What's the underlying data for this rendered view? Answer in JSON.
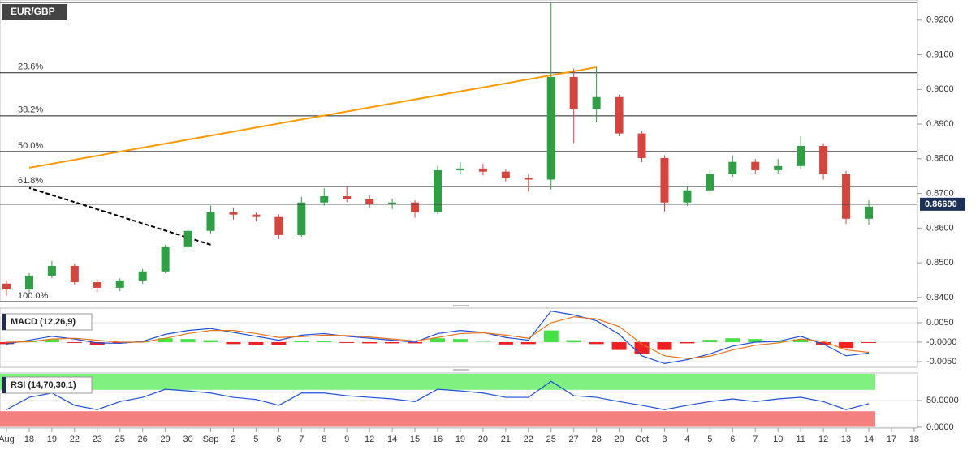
{
  "chart_data": [
    {
      "type": "candlestick",
      "title": "EUR/GBP",
      "categories": [
        "Aug",
        "18",
        "19",
        "22",
        "23",
        "25",
        "26",
        "29",
        "30",
        "Sep",
        "2",
        "5",
        "6",
        "7",
        "8",
        "9",
        "12",
        "14",
        "15",
        "16",
        "19",
        "20",
        "21",
        "22",
        "25",
        "27",
        "28",
        "29",
        "Oct",
        "3",
        "4",
        "5",
        "6",
        "7",
        "10",
        "11",
        "12",
        "13",
        "14",
        "17",
        "18"
      ],
      "open": [
        0.844,
        0.8423,
        0.8463,
        0.8491,
        0.8444,
        0.8428,
        0.8449,
        0.8475,
        0.8545,
        0.8592,
        0.8646,
        0.8639,
        0.8632,
        0.858,
        0.8674,
        0.8692,
        0.8685,
        0.867,
        0.8674,
        0.8646,
        0.8767,
        0.8772,
        0.8763,
        0.8744,
        0.874,
        0.9036,
        0.8943,
        0.8978,
        0.8873,
        0.8802,
        0.8674,
        0.8709,
        0.8756,
        0.8791,
        0.8767,
        0.8779,
        0.8837,
        0.8756,
        0.8627,
        null,
        null
      ],
      "high": [
        0.8448,
        0.847,
        0.8505,
        0.8498,
        0.8452,
        0.8455,
        0.8482,
        0.8552,
        0.86,
        0.8665,
        0.866,
        0.8645,
        0.864,
        0.869,
        0.8715,
        0.872,
        0.8695,
        0.8685,
        0.868,
        0.878,
        0.879,
        0.8785,
        0.877,
        0.8755,
        0.9252,
        0.906,
        0.9064,
        0.8985,
        0.888,
        0.881,
        0.872,
        0.877,
        0.881,
        0.88,
        0.88,
        0.8865,
        0.8845,
        0.8765,
        0.868,
        null,
        null
      ],
      "low": [
        0.8405,
        0.8415,
        0.8455,
        0.8438,
        0.8415,
        0.8418,
        0.844,
        0.847,
        0.8538,
        0.8585,
        0.8625,
        0.862,
        0.8568,
        0.8575,
        0.8665,
        0.8675,
        0.8658,
        0.8655,
        0.863,
        0.864,
        0.8755,
        0.8752,
        0.8735,
        0.8705,
        0.8712,
        0.8845,
        0.8905,
        0.8865,
        0.879,
        0.8648,
        0.8665,
        0.87,
        0.8748,
        0.8755,
        0.8755,
        0.877,
        0.874,
        0.8612,
        0.861,
        null,
        null
      ],
      "close": [
        0.8423,
        0.8463,
        0.8491,
        0.8444,
        0.8428,
        0.8449,
        0.8475,
        0.8545,
        0.8592,
        0.8646,
        0.8639,
        0.8632,
        0.858,
        0.8674,
        0.8692,
        0.8685,
        0.867,
        0.8674,
        0.8646,
        0.8767,
        0.8772,
        0.8763,
        0.8744,
        0.874,
        0.9036,
        0.8943,
        0.8978,
        0.8873,
        0.8802,
        0.8674,
        0.8709,
        0.8756,
        0.8791,
        0.8767,
        0.8779,
        0.8837,
        0.8756,
        0.8627,
        0.8662,
        null,
        null
      ],
      "up_color": "#2f9e44",
      "down_color": "#d6453d",
      "ylim": [
        0.8388,
        0.9258
      ],
      "yticks": [
        {
          "value": 0.92,
          "label": "0.9200"
        },
        {
          "value": 0.91,
          "label": "0.9100"
        },
        {
          "value": 0.9,
          "label": "0.9000"
        },
        {
          "value": 0.89,
          "label": "0.8900"
        },
        {
          "value": 0.88,
          "label": "0.8800"
        },
        {
          "value": 0.87,
          "label": "0.8700"
        },
        {
          "value": 0.86,
          "label": "0.8600"
        },
        {
          "value": 0.85,
          "label": "0.8500"
        },
        {
          "value": 0.84,
          "label": "0.8400"
        }
      ],
      "levels": [
        {
          "value": 0.9251
        },
        {
          "value": 0.9048,
          "label": "23.6%"
        },
        {
          "value": 0.8924,
          "label": "38.2%"
        },
        {
          "value": 0.8821,
          "label": "50.0%"
        },
        {
          "value": 0.872,
          "label": "61.8%"
        },
        {
          "value": 0.8388,
          "label": "100.0%"
        }
      ],
      "last_price": {
        "value": 0.8669,
        "label": "0.86690"
      },
      "trendlines": [
        {
          "color": "#ff9900",
          "dashed": false,
          "x": [
            "28",
            "18"
          ],
          "y": [
            0.9064,
            0.8774
          ]
        },
        {
          "color": "#000000",
          "dashed": true,
          "x": [
            "Sep",
            "18"
          ],
          "y": [
            0.8552,
            0.8716
          ]
        }
      ]
    },
    {
      "type": "macd",
      "title": "MACD (12,26,9)",
      "ylim": [
        -0.00646,
        0.00875
      ],
      "yticks": [
        {
          "value": 0.005,
          "label": "0.0050"
        },
        {
          "value": 0,
          "label": "-0.0000"
        },
        {
          "value": -0.005,
          "label": "-0.0050"
        }
      ],
      "series": [
        {
          "color": "#1f4fd6",
          "values": [
            -0.0005,
            0.0005,
            0.0015,
            0.0008,
            -0.0002,
            -0.0003,
            0.0002,
            0.002,
            0.003,
            0.0035,
            0.0025,
            0.0015,
            0.0005,
            0.0018,
            0.0022,
            0.0015,
            0.001,
            0.0005,
            0.0,
            0.0022,
            0.003,
            0.0025,
            0.0012,
            0.0005,
            0.008,
            0.007,
            0.0055,
            0.002,
            -0.0035,
            -0.0055,
            -0.0045,
            -0.003,
            -0.001,
            0.0,
            0.0002,
            0.0015,
            -0.0005,
            -0.0035,
            -0.0028,
            null,
            null
          ]
        },
        {
          "color": "#e8731a",
          "values": [
            0.0,
            0.0001,
            0.0008,
            0.001,
            0.0005,
            0.0,
            0.0,
            0.001,
            0.0022,
            0.003,
            0.003,
            0.0022,
            0.0012,
            0.0014,
            0.0018,
            0.0017,
            0.0013,
            0.0008,
            0.0003,
            0.0012,
            0.0022,
            0.0024,
            0.0018,
            0.001,
            0.005,
            0.0065,
            0.006,
            0.004,
            -0.0005,
            -0.0035,
            -0.0042,
            -0.0036,
            -0.002,
            -0.0008,
            -0.0002,
            0.0008,
            0.0002,
            -0.002,
            -0.0026,
            null,
            null
          ]
        }
      ],
      "histogram": [
        -0.0005,
        0.0004,
        0.0007,
        -0.0002,
        -0.0007,
        -0.0003,
        0.0002,
        0.001,
        0.0008,
        0.0005,
        -0.0005,
        -0.0007,
        -0.0007,
        0.0004,
        0.0004,
        -0.0002,
        -0.0003,
        -0.0003,
        -0.0003,
        0.001,
        0.0008,
        0.0001,
        -0.0006,
        -0.0005,
        0.003,
        0.0005,
        -0.0005,
        -0.002,
        -0.003,
        -0.002,
        -0.0003,
        0.0006,
        0.001,
        0.0008,
        0.0004,
        0.0007,
        -0.0007,
        -0.0015,
        -0.0002,
        null,
        null
      ],
      "up_color": "#44e044",
      "down_color": "#ee2222"
    },
    {
      "type": "rsi",
      "title": "RSI (14,70,30,1)",
      "ylim": [
        -1.5,
        101.5
      ],
      "yticks": [
        {
          "value": 50,
          "label": "50.0000"
        },
        {
          "value": 0,
          "label": "0.0000"
        }
      ],
      "bands": [
        {
          "from": 70,
          "to": 100,
          "color": "#80f080"
        },
        {
          "from": 0,
          "to": 30,
          "color": "#f58080"
        }
      ],
      "series": [
        {
          "color": "#1f4fd6",
          "values": [
            33,
            56,
            64,
            41,
            33,
            48,
            56,
            71,
            68,
            64,
            56,
            52,
            41,
            64,
            64,
            59,
            56,
            53,
            48,
            71,
            68,
            64,
            56,
            56,
            86,
            59,
            56,
            48,
            41,
            33,
            41,
            48,
            53,
            48,
            53,
            56,
            48,
            33,
            44,
            null,
            null
          ]
        }
      ]
    }
  ]
}
